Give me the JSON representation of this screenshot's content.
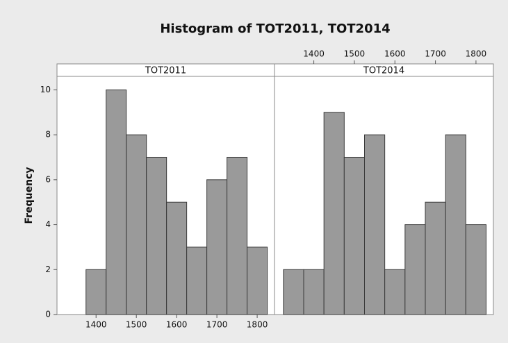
{
  "title": "Histogram of TOT2011, TOT2014",
  "chart_data": [
    {
      "type": "histogram",
      "title": "TOT2011",
      "ylabel": "Frequency",
      "bins": [
        1325,
        1375,
        1425,
        1475,
        1525,
        1575,
        1625,
        1675,
        1725,
        1775,
        1825
      ],
      "values": [
        0,
        2,
        10,
        8,
        7,
        5,
        3,
        6,
        7,
        3
      ],
      "color": "#9a9a9a",
      "edge_color": "#3a3a3a",
      "xlim": [
        1303,
        1843
      ],
      "xticks": [
        1400,
        1500,
        1600,
        1700,
        1800
      ],
      "xaxis_position": "bottom",
      "ylim": [
        0,
        10.6
      ],
      "yticks": [
        0,
        2,
        4,
        6,
        8,
        10
      ]
    },
    {
      "type": "histogram",
      "title": "TOT2014",
      "bins": [
        1325,
        1375,
        1425,
        1475,
        1525,
        1575,
        1625,
        1675,
        1725,
        1775,
        1825
      ],
      "values": [
        2,
        2,
        9,
        7,
        8,
        2,
        4,
        5,
        8,
        4
      ],
      "color": "#9a9a9a",
      "edge_color": "#3a3a3a",
      "xlim": [
        1303,
        1843
      ],
      "xticks": [
        1400,
        1500,
        1600,
        1700,
        1800
      ],
      "xaxis_position": "top",
      "ylim": [
        0,
        10.6
      ]
    }
  ]
}
